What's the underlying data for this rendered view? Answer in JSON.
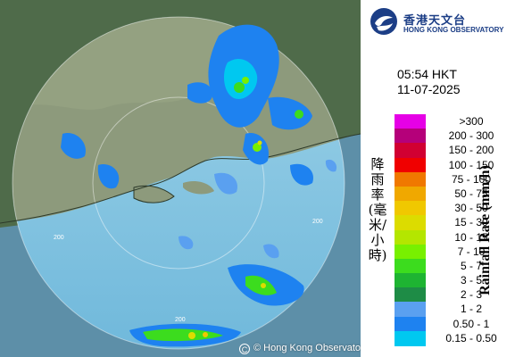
{
  "organization": {
    "name_zh": "香港天文台",
    "name_en": "HONG KONG OBSERVATORY",
    "brand_color": "#1c3e86"
  },
  "observation": {
    "time": "05:54 HKT",
    "date": "11-07-2025"
  },
  "legend": {
    "title_zh": "降雨率(毫米/小時)",
    "title_en": "Rainfall Rate (mm/h)",
    "items": [
      {
        "label": ">300",
        "color": "#e600e6"
      },
      {
        "label": "200 - 300",
        "color": "#b5007a"
      },
      {
        "label": "150 - 200",
        "color": "#d10032"
      },
      {
        "label": "100 - 150",
        "color": "#f00000"
      },
      {
        "label": "75 - 100",
        "color": "#f07800"
      },
      {
        "label": "50 - 75",
        "color": "#f0a800"
      },
      {
        "label": "30 - 50",
        "color": "#f0c800"
      },
      {
        "label": "15 - 30",
        "color": "#dcdc00"
      },
      {
        "label": "10 - 15",
        "color": "#b4e600"
      },
      {
        "label": "7 - 10",
        "color": "#78f000"
      },
      {
        "label": "5 - 7",
        "color": "#3cdc1e"
      },
      {
        "label": "3 - 5",
        "color": "#1eb432"
      },
      {
        "label": "2 - 3",
        "color": "#1e8c46"
      },
      {
        "label": "1 - 2",
        "color": "#5aa0f0"
      },
      {
        "label": "0.50 - 1",
        "color": "#1e82f0"
      },
      {
        "label": "0.15 - 0.50",
        "color": "#00c8f0"
      }
    ]
  },
  "map": {
    "range_ring_labels": [
      "200",
      "200",
      "200"
    ],
    "copyright": "© Hong Kong Observatory"
  }
}
